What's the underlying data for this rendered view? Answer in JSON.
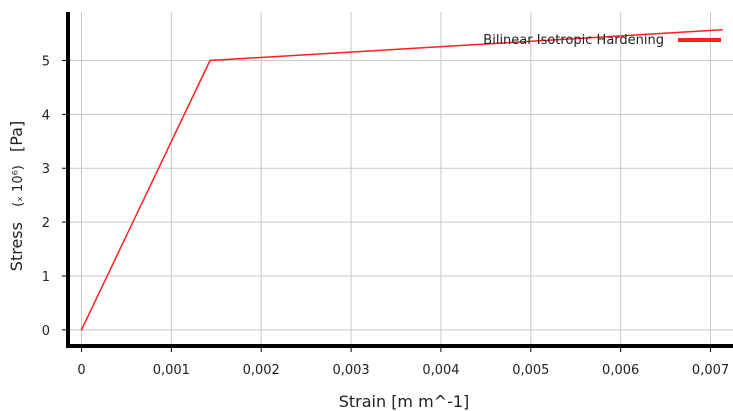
{
  "chart_data": {
    "type": "line",
    "title": "",
    "xlabel": "Strain  [m m^-1]",
    "ylabel_main": "Stress",
    "ylabel_scale": "(ₓ 10⁶)",
    "ylabel_unit": "[Pa]",
    "x_ticks": [
      "0",
      "0,001",
      "0,002",
      "0,003",
      "0,004",
      "0,005",
      "0,006",
      "0,007"
    ],
    "x_tick_values": [
      0,
      0.001,
      0.002,
      0.003,
      0.004,
      0.005,
      0.006,
      0.007
    ],
    "y_ticks": [
      "0",
      "1",
      "2",
      "3",
      "4",
      "5"
    ],
    "y_tick_values": [
      0,
      1,
      2,
      3,
      4,
      5
    ],
    "xlim": [
      -0.00015,
      0.00725
    ],
    "ylim": [
      -0.3,
      5.9
    ],
    "grid": true,
    "legend_position": "top-right",
    "series": [
      {
        "name": "Bilinear Isotropic Hardening",
        "color": "#ff2020",
        "points": [
          {
            "x": 0,
            "y": 0
          },
          {
            "x": 0.00143,
            "y": 5.0
          },
          {
            "x": 0.00713,
            "y": 5.57
          }
        ]
      }
    ]
  }
}
